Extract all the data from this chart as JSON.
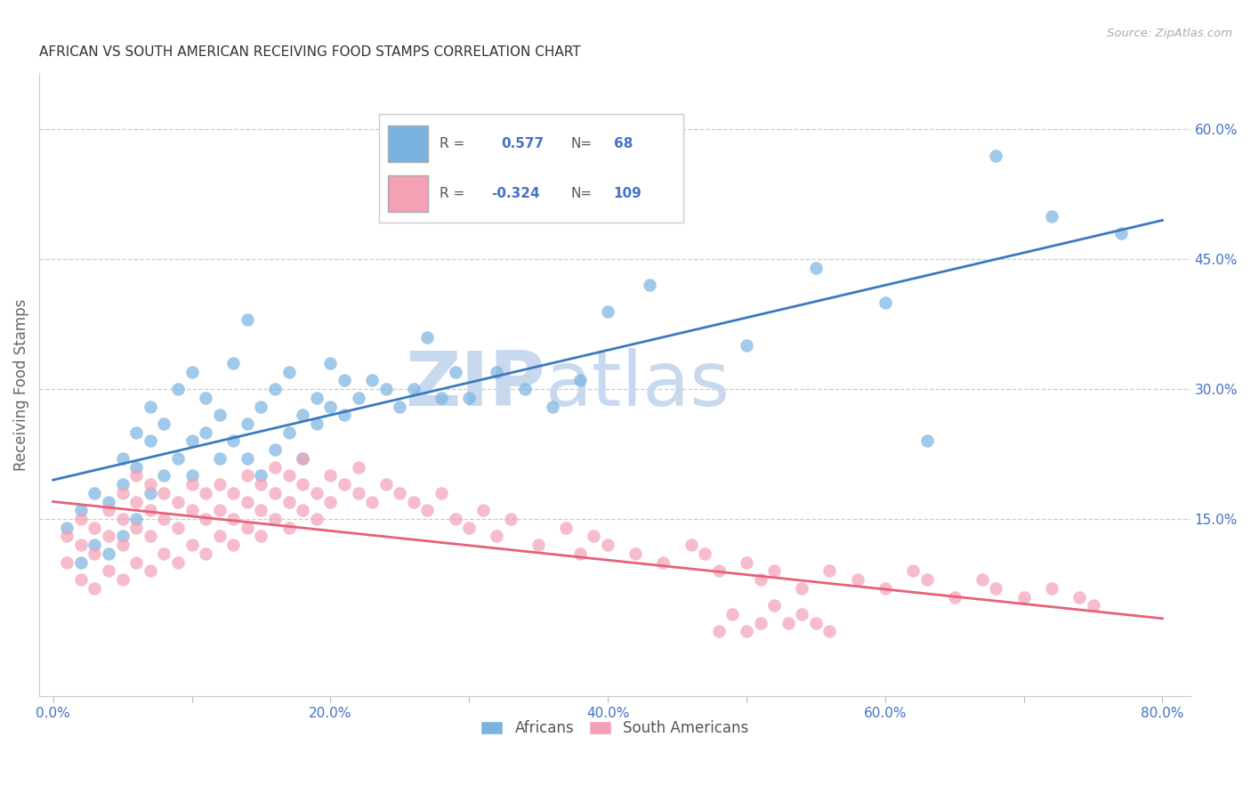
{
  "title": "AFRICAN VS SOUTH AMERICAN RECEIVING FOOD STAMPS CORRELATION CHART",
  "source": "Source: ZipAtlas.com",
  "ylabel": "Receiving Food Stamps",
  "xlabel_ticks": [
    "0.0%",
    "",
    "20.0%",
    "",
    "40.0%",
    "",
    "60.0%",
    "",
    "80.0%"
  ],
  "xlabel_vals": [
    0.0,
    0.1,
    0.2,
    0.3,
    0.4,
    0.5,
    0.6,
    0.7,
    0.8
  ],
  "ylabel_ticks_right": [
    "15.0%",
    "30.0%",
    "45.0%",
    "60.0%"
  ],
  "ylabel_vals_right": [
    0.15,
    0.3,
    0.45,
    0.6
  ],
  "xlim": [
    -0.01,
    0.82
  ],
  "ylim": [
    -0.055,
    0.665
  ],
  "blue_color": "#7ab3e0",
  "pink_color": "#f4a0b5",
  "blue_line_color": "#3a7abf",
  "pink_line_color": "#e8607a",
  "watermark_ZIP": "ZIP",
  "watermark_atlas": "atlas",
  "blue_line_x": [
    0.0,
    0.8
  ],
  "blue_line_y": [
    0.195,
    0.495
  ],
  "pink_line_x": [
    0.0,
    0.8
  ],
  "pink_line_y": [
    0.17,
    0.035
  ],
  "blue_scatter_x": [
    0.01,
    0.02,
    0.02,
    0.03,
    0.03,
    0.04,
    0.04,
    0.05,
    0.05,
    0.05,
    0.06,
    0.06,
    0.06,
    0.07,
    0.07,
    0.07,
    0.08,
    0.08,
    0.09,
    0.09,
    0.1,
    0.1,
    0.1,
    0.11,
    0.11,
    0.12,
    0.12,
    0.13,
    0.13,
    0.14,
    0.14,
    0.14,
    0.15,
    0.15,
    0.16,
    0.16,
    0.17,
    0.17,
    0.18,
    0.18,
    0.19,
    0.19,
    0.2,
    0.2,
    0.21,
    0.21,
    0.22,
    0.23,
    0.24,
    0.25,
    0.26,
    0.27,
    0.28,
    0.29,
    0.3,
    0.32,
    0.34,
    0.36,
    0.38,
    0.4,
    0.43,
    0.5,
    0.55,
    0.6,
    0.63,
    0.68,
    0.72,
    0.77
  ],
  "blue_scatter_y": [
    0.14,
    0.1,
    0.16,
    0.12,
    0.18,
    0.11,
    0.17,
    0.13,
    0.19,
    0.22,
    0.15,
    0.21,
    0.25,
    0.18,
    0.24,
    0.28,
    0.2,
    0.26,
    0.22,
    0.3,
    0.24,
    0.32,
    0.2,
    0.25,
    0.29,
    0.22,
    0.27,
    0.24,
    0.33,
    0.26,
    0.22,
    0.38,
    0.2,
    0.28,
    0.23,
    0.3,
    0.25,
    0.32,
    0.22,
    0.27,
    0.26,
    0.29,
    0.28,
    0.33,
    0.27,
    0.31,
    0.29,
    0.31,
    0.3,
    0.28,
    0.3,
    0.36,
    0.29,
    0.32,
    0.29,
    0.32,
    0.3,
    0.28,
    0.31,
    0.39,
    0.42,
    0.35,
    0.44,
    0.4,
    0.24,
    0.57,
    0.5,
    0.48
  ],
  "pink_scatter_x": [
    0.01,
    0.01,
    0.02,
    0.02,
    0.02,
    0.03,
    0.03,
    0.03,
    0.04,
    0.04,
    0.04,
    0.05,
    0.05,
    0.05,
    0.05,
    0.06,
    0.06,
    0.06,
    0.06,
    0.07,
    0.07,
    0.07,
    0.07,
    0.08,
    0.08,
    0.08,
    0.09,
    0.09,
    0.09,
    0.1,
    0.1,
    0.1,
    0.11,
    0.11,
    0.11,
    0.12,
    0.12,
    0.12,
    0.13,
    0.13,
    0.13,
    0.14,
    0.14,
    0.14,
    0.15,
    0.15,
    0.15,
    0.16,
    0.16,
    0.16,
    0.17,
    0.17,
    0.17,
    0.18,
    0.18,
    0.18,
    0.19,
    0.19,
    0.2,
    0.2,
    0.21,
    0.22,
    0.22,
    0.23,
    0.24,
    0.25,
    0.26,
    0.27,
    0.28,
    0.29,
    0.3,
    0.31,
    0.32,
    0.33,
    0.35,
    0.37,
    0.38,
    0.39,
    0.4,
    0.42,
    0.44,
    0.46,
    0.47,
    0.48,
    0.5,
    0.51,
    0.52,
    0.54,
    0.56,
    0.58,
    0.6,
    0.62,
    0.63,
    0.65,
    0.67,
    0.68,
    0.7,
    0.72,
    0.74,
    0.75,
    0.48,
    0.49,
    0.5,
    0.51,
    0.52,
    0.53,
    0.54,
    0.55,
    0.56
  ],
  "pink_scatter_y": [
    0.1,
    0.13,
    0.08,
    0.12,
    0.15,
    0.07,
    0.11,
    0.14,
    0.09,
    0.13,
    0.16,
    0.08,
    0.12,
    0.15,
    0.18,
    0.1,
    0.14,
    0.17,
    0.2,
    0.09,
    0.13,
    0.16,
    0.19,
    0.11,
    0.15,
    0.18,
    0.1,
    0.14,
    0.17,
    0.12,
    0.16,
    0.19,
    0.11,
    0.15,
    0.18,
    0.13,
    0.16,
    0.19,
    0.12,
    0.15,
    0.18,
    0.14,
    0.17,
    0.2,
    0.13,
    0.16,
    0.19,
    0.15,
    0.18,
    0.21,
    0.14,
    0.17,
    0.2,
    0.16,
    0.19,
    0.22,
    0.15,
    0.18,
    0.17,
    0.2,
    0.19,
    0.18,
    0.21,
    0.17,
    0.19,
    0.18,
    0.17,
    0.16,
    0.18,
    0.15,
    0.14,
    0.16,
    0.13,
    0.15,
    0.12,
    0.14,
    0.11,
    0.13,
    0.12,
    0.11,
    0.1,
    0.12,
    0.11,
    0.09,
    0.1,
    0.08,
    0.09,
    0.07,
    0.09,
    0.08,
    0.07,
    0.09,
    0.08,
    0.06,
    0.08,
    0.07,
    0.06,
    0.07,
    0.06,
    0.05,
    0.02,
    0.04,
    0.02,
    0.03,
    0.05,
    0.03,
    0.04,
    0.03,
    0.02
  ]
}
